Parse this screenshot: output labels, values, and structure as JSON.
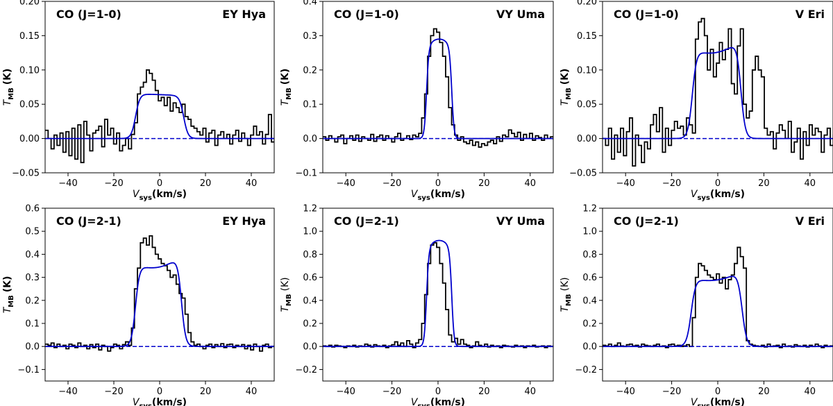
{
  "colors": {
    "observed": "#000000",
    "model": "#0000cc",
    "baseline": "#0000cc"
  },
  "chart_data": [
    {
      "type": "line",
      "line": "CO (J=1-0)",
      "star": "EY Hya",
      "title_left": "CO (J=1-0)",
      "title_right": "EY Hya",
      "xlabel_main": "V",
      "xlabel_sub": "sys",
      "xlabel_unit": "(km/s)",
      "ylabel_main": "T",
      "ylabel_sub": "MB",
      "ylabel_unit": "(K)",
      "xlim": [
        -50,
        50
      ],
      "ylim": [
        -0.05,
        0.2
      ],
      "xticks": [
        -40,
        -20,
        0,
        20,
        40
      ],
      "xtick_labels": [
        "−40",
        "−20",
        "0",
        "20",
        "40"
      ],
      "yticks": [
        -0.05,
        0.0,
        0.05,
        0.1,
        0.15,
        0.2
      ],
      "ytick_labels": [
        "−0.05",
        "0.00",
        "0.05",
        "0.10",
        "0.15",
        "0.20"
      ],
      "model": {
        "vc": 0,
        "ve": 10.5,
        "peak": 0.064,
        "shape": "flat"
      },
      "observed": {
        "x_start": -50,
        "dx": 1.3,
        "y": [
          0.012,
          0.0,
          -0.015,
          0.005,
          -0.01,
          0.008,
          -0.02,
          0.01,
          -0.025,
          0.015,
          -0.03,
          0.02,
          -0.035,
          0.025,
          0.005,
          -0.018,
          0.008,
          0.012,
          0.018,
          -0.012,
          0.028,
          0.005,
          0.015,
          -0.008,
          0.008,
          -0.018,
          -0.01,
          0.0,
          -0.015,
          0.006,
          0.023,
          0.065,
          0.075,
          0.082,
          0.1,
          0.095,
          0.085,
          0.07,
          0.055,
          0.06,
          0.048,
          0.06,
          0.04,
          0.052,
          0.045,
          0.038,
          0.05,
          0.032,
          0.028,
          0.018,
          0.015,
          0.01,
          0.005,
          0.015,
          -0.005,
          0.008,
          0.012,
          -0.01,
          0.005,
          0.01,
          0.0,
          0.006,
          -0.008,
          0.005,
          0.012,
          -0.004,
          0.008,
          0.0,
          -0.01,
          0.005,
          0.018,
          0.005,
          0.01,
          -0.008,
          0.006,
          0.035,
          -0.005,
          0.012
        ]
      }
    },
    {
      "type": "line",
      "line": "CO (J=1-0)",
      "star": "VY Uma",
      "title_left": "CO (J=1-0)",
      "title_right": "VY Uma",
      "xlabel_main": "V",
      "xlabel_sub": "sys",
      "xlabel_unit": "(km/s)",
      "ylabel_main": "T",
      "ylabel_sub": "MB",
      "ylabel_unit": "(K)",
      "xlim": [
        -50,
        50
      ],
      "ylim": [
        -0.1,
        0.4
      ],
      "xticks": [
        -40,
        -20,
        0,
        20,
        40
      ],
      "xtick_labels": [
        "−40",
        "−20",
        "0",
        "20",
        "40"
      ],
      "yticks": [
        -0.1,
        0.0,
        0.1,
        0.2,
        0.3,
        0.4
      ],
      "ytick_labels": [
        "−0.1",
        "0.0",
        "0.1",
        "0.2",
        "0.3",
        "0.4"
      ],
      "model": {
        "vc": 0.5,
        "ve": 5.5,
        "peak": 0.29,
        "shape": "peaked"
      },
      "observed": {
        "x_start": -50,
        "dx": 1.3,
        "y": [
          0.005,
          -0.005,
          0.008,
          0.0,
          -0.01,
          0.005,
          0.01,
          -0.015,
          0.0,
          0.008,
          -0.005,
          0.01,
          -0.008,
          0.005,
          0.0,
          -0.005,
          0.012,
          -0.008,
          0.005,
          0.01,
          -0.005,
          0.008,
          0.0,
          -0.01,
          0.005,
          0.015,
          -0.005,
          0.0,
          0.008,
          -0.003,
          0.01,
          0.005,
          0.015,
          0.06,
          0.13,
          0.24,
          0.3,
          0.32,
          0.31,
          0.28,
          0.24,
          0.18,
          0.09,
          0.04,
          0.01,
          -0.005,
          0.005,
          -0.01,
          -0.015,
          -0.005,
          -0.02,
          -0.01,
          -0.025,
          -0.015,
          -0.02,
          -0.01,
          -0.005,
          -0.015,
          0.005,
          -0.008,
          0.01,
          0.005,
          0.025,
          0.015,
          0.005,
          0.018,
          -0.005,
          0.012,
          0.0,
          0.015,
          -0.005,
          0.008,
          0.003,
          -0.005,
          0.01,
          0.0,
          0.005,
          -0.003
        ]
      }
    },
    {
      "type": "line",
      "line": "CO (J=1-0)",
      "star": "V Eri",
      "title_left": "CO (J=1-0)",
      "title_right": "V Eri",
      "xlabel_main": "V",
      "xlabel_sub": "sys",
      "xlabel_unit": "(km/s)",
      "ylabel_main": "T",
      "ylabel_sub": "MB",
      "ylabel_unit": "(K)",
      "xlim": [
        -50,
        50
      ],
      "ylim": [
        -0.05,
        0.2
      ],
      "xticks": [
        -40,
        -20,
        0,
        20,
        40
      ],
      "xtick_labels": [
        "−40",
        "−20",
        "0",
        "20",
        "40"
      ],
      "yticks": [
        -0.05,
        0.0,
        0.05,
        0.1,
        0.15,
        0.2
      ],
      "ytick_labels": [
        "−0.05",
        "0.00",
        "0.05",
        "0.10",
        "0.15",
        "0.20"
      ],
      "model": {
        "vc": -0.5,
        "ve": 10.5,
        "peak": 0.135,
        "shape": "horns"
      },
      "observed": {
        "x_start": -50,
        "dx": 1.3,
        "y": [
          0.0,
          -0.01,
          0.015,
          -0.03,
          0.005,
          -0.02,
          0.015,
          -0.025,
          0.01,
          0.03,
          -0.04,
          0.005,
          -0.01,
          -0.035,
          -0.005,
          -0.015,
          0.02,
          0.035,
          0.01,
          0.045,
          -0.02,
          0.015,
          -0.01,
          0.012,
          0.025,
          0.015,
          0.018,
          0.005,
          0.03,
          0.02,
          0.008,
          0.145,
          0.17,
          0.175,
          0.15,
          0.1,
          0.13,
          0.09,
          0.11,
          0.14,
          0.115,
          0.13,
          0.16,
          0.08,
          0.065,
          0.135,
          0.16,
          0.05,
          0.03,
          0.04,
          0.1,
          0.12,
          0.1,
          0.09,
          0.015,
          0.005,
          0.01,
          -0.015,
          0.008,
          0.02,
          0.012,
          0.0,
          0.025,
          -0.02,
          -0.005,
          0.015,
          -0.03,
          0.01,
          -0.01,
          0.02,
          0.005,
          0.015,
          0.01,
          -0.02,
          0.005,
          0.015,
          -0.01,
          0.005
        ]
      }
    },
    {
      "type": "line",
      "line": "CO (J=2-1)",
      "star": "EY Hya",
      "title_left": "CO (J=2-1)",
      "title_right": "EY Hya",
      "xlabel_main": "V",
      "xlabel_sub": "sys",
      "xlabel_unit": "(km/s)",
      "ylabel_main": "T",
      "ylabel_sub": "MB",
      "ylabel_unit": "(K)",
      "xlim": [
        -50,
        50
      ],
      "ylim": [
        -0.15,
        0.6
      ],
      "xticks": [
        -40,
        -20,
        0,
        20,
        40
      ],
      "xtick_labels": [
        "−40",
        "−20",
        "0",
        "20",
        "40"
      ],
      "yticks": [
        -0.1,
        0.0,
        0.1,
        0.2,
        0.3,
        0.4,
        0.5,
        0.6
      ],
      "ytick_labels": [
        "−0.1",
        "0.0",
        "0.1",
        "0.2",
        "0.3",
        "0.4",
        "0.5",
        "0.6"
      ],
      "model": {
        "vc": -0.5,
        "ve": 10,
        "peak": 0.37,
        "shape": "horns"
      },
      "observed": {
        "x_start": -50,
        "dx": 1.3,
        "y": [
          0.01,
          0.005,
          0.015,
          -0.005,
          0.01,
          0.0,
          0.005,
          -0.01,
          0.01,
          0.005,
          -0.005,
          0.015,
          0.0,
          0.005,
          -0.01,
          0.008,
          -0.005,
          0.01,
          -0.015,
          0.005,
          0.0,
          -0.02,
          -0.005,
          0.01,
          0.005,
          -0.01,
          0.008,
          0.02,
          0.005,
          0.08,
          0.25,
          0.34,
          0.45,
          0.47,
          0.44,
          0.48,
          0.43,
          0.4,
          0.38,
          0.36,
          0.35,
          0.33,
          0.3,
          0.31,
          0.27,
          0.23,
          0.21,
          0.14,
          0.06,
          0.02,
          0.005,
          0.01,
          0.0,
          -0.01,
          0.005,
          0.01,
          -0.005,
          0.008,
          0.0,
          0.012,
          -0.005,
          0.008,
          0.01,
          -0.005,
          0.005,
          0.0,
          0.008,
          -0.01,
          0.005,
          -0.015,
          0.01,
          0.0,
          -0.02,
          0.005,
          0.01,
          -0.005,
          0.0,
          0.005
        ]
      }
    },
    {
      "type": "line",
      "line": "CO (J=2-1)",
      "star": "VY Uma",
      "title_left": "CO (J=2-1)",
      "title_right": "VY Uma",
      "xlabel_main": "V",
      "xlabel_sub": "sys",
      "xlabel_unit": "(km/s)",
      "ylabel_main": "T",
      "ylabel_sub": "MB",
      "ylabel_unit": "(K)",
      "xlim": [
        -50,
        50
      ],
      "ylim": [
        -0.3,
        1.2
      ],
      "xticks": [
        -40,
        -20,
        0,
        20,
        40
      ],
      "xtick_labels": [
        "−40",
        "−20",
        "0",
        "20",
        "40"
      ],
      "yticks": [
        -0.2,
        0.0,
        0.2,
        0.4,
        0.6,
        0.8,
        1.0,
        1.2
      ],
      "ytick_labels": [
        "−0.2",
        "0.0",
        "0.2",
        "0.4",
        "0.6",
        "0.8",
        "1.0",
        "1.2"
      ],
      "model": {
        "vc": 0.5,
        "ve": 5.5,
        "peak": 0.92,
        "shape": "peaked"
      },
      "observed": {
        "x_start": -50,
        "dx": 1.3,
        "y": [
          0.005,
          0.0,
          0.01,
          -0.005,
          0.01,
          0.005,
          0.0,
          -0.01,
          0.005,
          0.0,
          0.01,
          -0.005,
          0.005,
          0.0,
          0.02,
          0.01,
          -0.005,
          0.015,
          0.005,
          0.0,
          0.01,
          -0.01,
          0.005,
          0.015,
          0.04,
          0.01,
          0.03,
          0.0,
          0.05,
          0.02,
          -0.01,
          0.03,
          0.06,
          0.2,
          0.45,
          0.72,
          0.88,
          0.9,
          0.86,
          0.72,
          0.55,
          0.32,
          0.1,
          0.04,
          0.07,
          0.02,
          0.06,
          0.02,
          0.01,
          -0.01,
          0.005,
          0.04,
          0.01,
          0.0,
          0.02,
          -0.005,
          0.01,
          0.0,
          0.005,
          -0.01,
          0.01,
          0.005,
          0.0,
          -0.005,
          0.01,
          0.0,
          0.005,
          -0.01,
          0.005,
          0.0,
          0.01,
          -0.005,
          0.0,
          0.005,
          -0.01,
          0.005,
          0.0,
          0.005
        ]
      }
    },
    {
      "type": "line",
      "line": "CO (J=2-1)",
      "star": "V Eri",
      "title_left": "CO (J=2-1)",
      "title_right": "V Eri",
      "xlabel_main": "V",
      "xlabel_sub": "sys",
      "xlabel_unit": "(km/s)",
      "ylabel_main": "T",
      "ylabel_sub": "MB",
      "ylabel_unit": "(K)",
      "xlim": [
        -50,
        50
      ],
      "ylim": [
        -0.3,
        1.2
      ],
      "xticks": [
        -40,
        -20,
        0,
        20,
        40
      ],
      "xtick_labels": [
        "−40",
        "−20",
        "0",
        "20",
        "40"
      ],
      "yticks": [
        -0.2,
        0.0,
        0.2,
        0.4,
        0.6,
        0.8,
        1.0,
        1.2
      ],
      "ytick_labels": [
        "−0.2",
        "0.0",
        "0.2",
        "0.4",
        "0.6",
        "0.8",
        "1.0",
        "1.2"
      ],
      "model": {
        "vc": -0.5,
        "ve": 11,
        "peak": 0.62,
        "shape": "horns"
      },
      "observed": {
        "x_start": -50,
        "dx": 1.3,
        "y": [
          0.01,
          0.005,
          0.02,
          0.0,
          0.01,
          0.03,
          0.005,
          0.0,
          0.015,
          0.02,
          0.005,
          0.01,
          -0.005,
          0.02,
          0.01,
          0.005,
          0.0,
          0.01,
          0.02,
          0.0,
          0.005,
          -0.01,
          0.015,
          0.02,
          0.005,
          0.01,
          0.0,
          0.005,
          0.015,
          0.0,
          0.25,
          0.6,
          0.72,
          0.7,
          0.66,
          0.62,
          0.6,
          0.58,
          0.63,
          0.55,
          0.6,
          0.5,
          0.58,
          0.62,
          0.72,
          0.86,
          0.78,
          0.68,
          0.05,
          0.02,
          0.01,
          0.005,
          0.0,
          0.01,
          -0.005,
          0.02,
          0.0,
          0.005,
          0.01,
          -0.01,
          0.02,
          0.0,
          0.005,
          -0.005,
          0.015,
          0.005,
          0.0,
          0.01,
          -0.005,
          0.01,
          0.0,
          0.02,
          0.005,
          -0.01,
          0.01,
          0.0,
          0.005,
          0.01
        ]
      }
    }
  ]
}
